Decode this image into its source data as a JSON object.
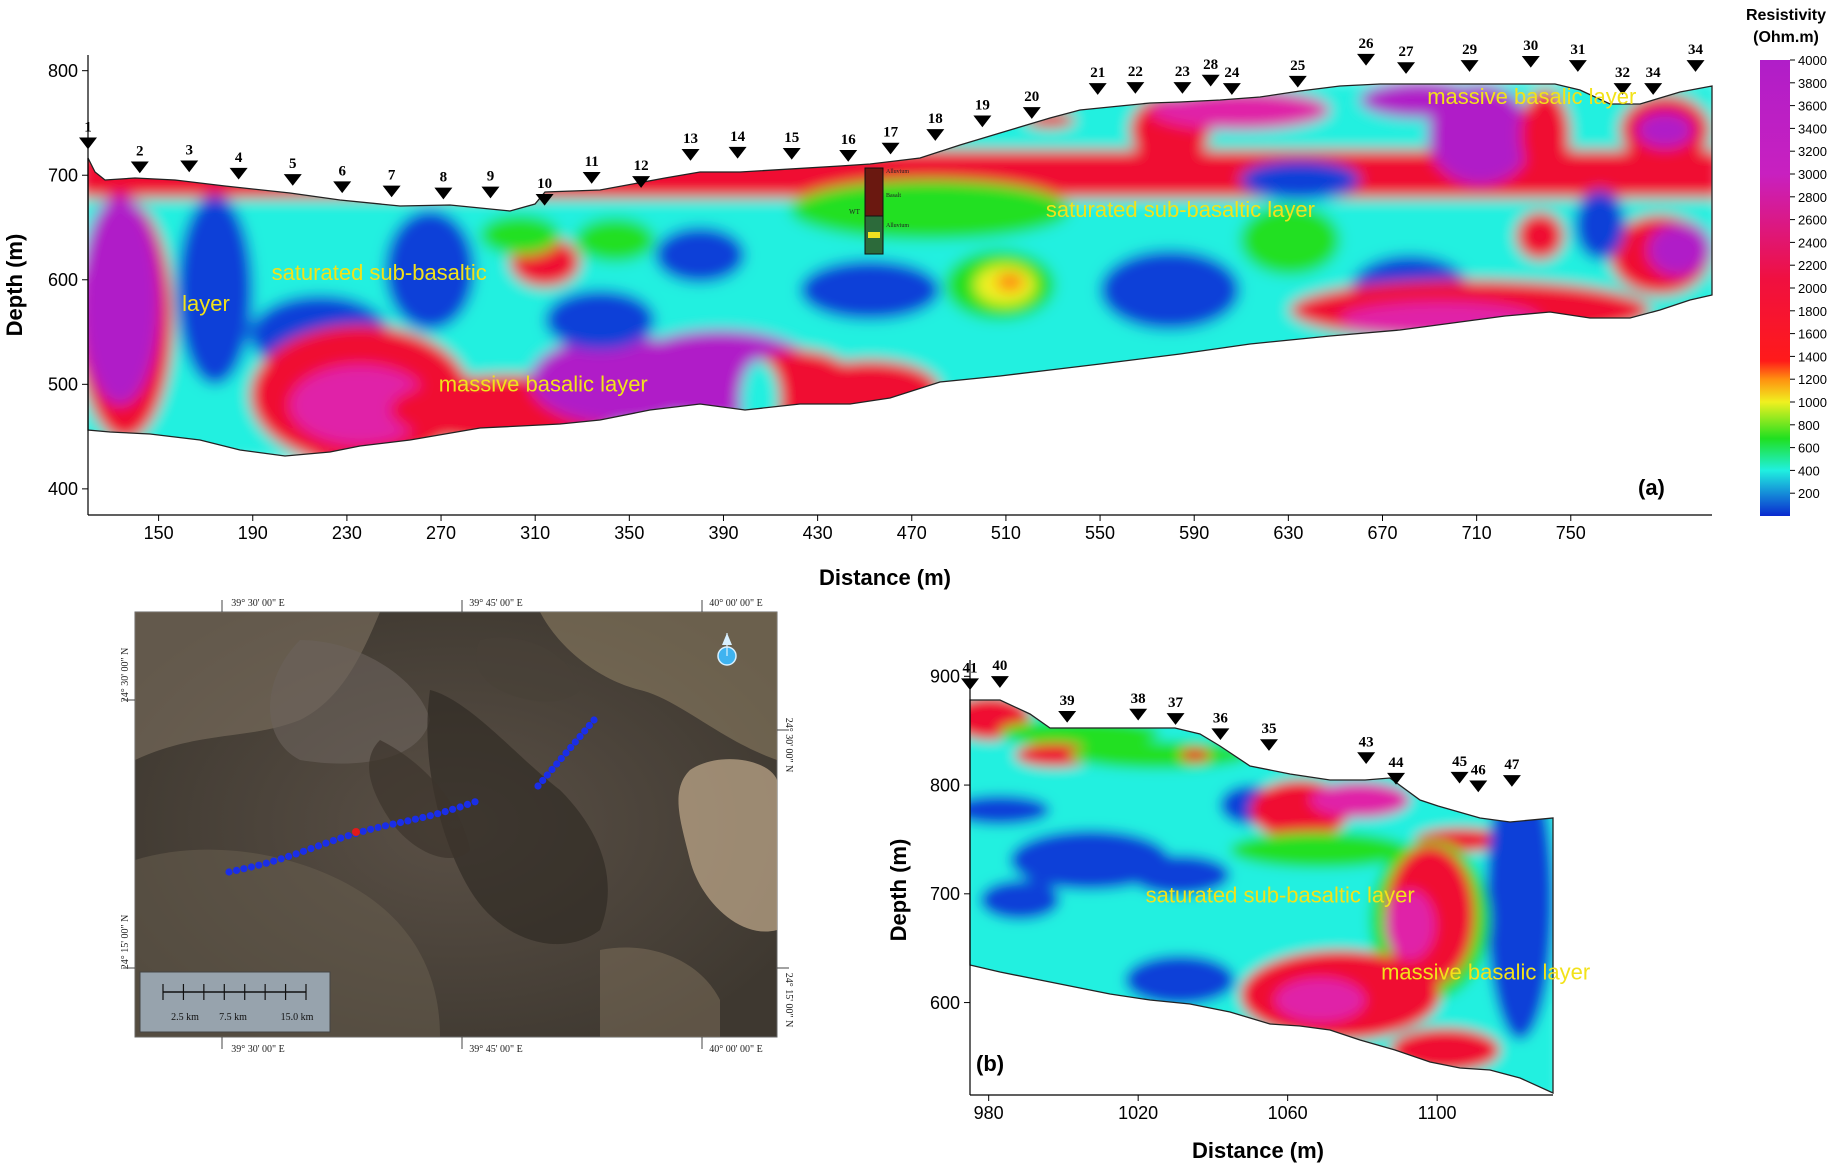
{
  "colors": {
    "violet": "#b01ec8",
    "magenta": "#e020a8",
    "red": "#f01030",
    "orange": "#ff8010",
    "yellow": "#f0f020",
    "green": "#20e020",
    "cyan": "#20f0e0",
    "blue": "#1040d8",
    "label_yellow": "#f2e21a",
    "map_dot": "#1a2ee8"
  },
  "chart_data": [
    {
      "id": "a",
      "type": "heatmap",
      "panel_label": "(a)",
      "xlabel": "Distance (m)",
      "ylabel": "Depth (m)",
      "xlim": [
        120,
        810
      ],
      "ylim": [
        375,
        815
      ],
      "xticks": [
        "150",
        "190",
        "230",
        "270",
        "310",
        "350",
        "390",
        "430",
        "470",
        "510",
        "550",
        "590",
        "630",
        "670",
        "710",
        "750"
      ],
      "yticks": [
        "800",
        "700",
        "600",
        "500",
        "400"
      ],
      "stations": [
        {
          "label": "1",
          "x": 120,
          "y": 738
        },
        {
          "label": "2",
          "x": 142,
          "y": 715
        },
        {
          "label": "3",
          "x": 163,
          "y": 716
        },
        {
          "label": "4",
          "x": 184,
          "y": 709
        },
        {
          "label": "5",
          "x": 207,
          "y": 703
        },
        {
          "label": "6",
          "x": 228,
          "y": 696
        },
        {
          "label": "7",
          "x": 249,
          "y": 692
        },
        {
          "label": "8",
          "x": 271,
          "y": 690
        },
        {
          "label": "9",
          "x": 291,
          "y": 691
        },
        {
          "label": "10",
          "x": 314,
          "y": 684
        },
        {
          "label": "11",
          "x": 334,
          "y": 705
        },
        {
          "label": "12",
          "x": 355,
          "y": 701
        },
        {
          "label": "13",
          "x": 376,
          "y": 727
        },
        {
          "label": "14",
          "x": 396,
          "y": 729
        },
        {
          "label": "15",
          "x": 419,
          "y": 728
        },
        {
          "label": "16",
          "x": 443,
          "y": 726
        },
        {
          "label": "17",
          "x": 461,
          "y": 733
        },
        {
          "label": "18",
          "x": 480,
          "y": 746
        },
        {
          "label": "19",
          "x": 500,
          "y": 759
        },
        {
          "label": "20",
          "x": 521,
          "y": 767
        },
        {
          "label": "21",
          "x": 549,
          "y": 790
        },
        {
          "label": "22",
          "x": 565,
          "y": 791
        },
        {
          "label": "23",
          "x": 585,
          "y": 791
        },
        {
          "label": "28",
          "x": 597,
          "y": 798
        },
        {
          "label": "24",
          "x": 606,
          "y": 790
        },
        {
          "label": "25",
          "x": 634,
          "y": 797
        },
        {
          "label": "26",
          "x": 663,
          "y": 818
        },
        {
          "label": "27",
          "x": 680,
          "y": 810
        },
        {
          "label": "29",
          "x": 707,
          "y": 812
        },
        {
          "label": "30",
          "x": 733,
          "y": 816
        },
        {
          "label": "31",
          "x": 753,
          "y": 812
        },
        {
          "label": "32",
          "x": 772,
          "y": 790
        },
        {
          "label": "34",
          "x": 785,
          "y": 790
        },
        {
          "label": "34",
          "x": 803,
          "y": 812
        }
      ],
      "annotations": [
        {
          "text": "saturated sub-basaltic",
          "x": 198,
          "y": 600
        },
        {
          "text": "layer",
          "x": 160,
          "y": 570
        },
        {
          "text": "massive basalic layer",
          "x": 269,
          "y": 493
        },
        {
          "text": "saturated sub-basaltic layer",
          "x": 527,
          "y": 660
        },
        {
          "text": "massive basalic layer",
          "x": 689,
          "y": 768
        }
      ],
      "borehole_labels": [
        "Alluvium",
        "Basalt",
        "Alluvium",
        "WT"
      ]
    },
    {
      "id": "b",
      "type": "heatmap",
      "panel_label": "(b)",
      "xlabel": "Distance (m)",
      "ylabel": "Depth (m)",
      "xlim": [
        975,
        1131
      ],
      "ylim": [
        515,
        915
      ],
      "xticks": [
        "980",
        "1020",
        "1060",
        "1100"
      ],
      "yticks": [
        "900",
        "800",
        "700",
        "600"
      ],
      "stations": [
        {
          "label": "41",
          "x": 975,
          "y": 900
        },
        {
          "label": "40",
          "x": 983,
          "y": 902
        },
        {
          "label": "39",
          "x": 1001,
          "y": 870
        },
        {
          "label": "38",
          "x": 1020,
          "y": 872
        },
        {
          "label": "37",
          "x": 1030,
          "y": 868
        },
        {
          "label": "36",
          "x": 1042,
          "y": 854
        },
        {
          "label": "35",
          "x": 1055,
          "y": 844
        },
        {
          "label": "43",
          "x": 1081,
          "y": 832
        },
        {
          "label": "44",
          "x": 1089,
          "y": 813
        },
        {
          "label": "45",
          "x": 1106,
          "y": 814
        },
        {
          "label": "46",
          "x": 1111,
          "y": 806
        },
        {
          "label": "47",
          "x": 1120,
          "y": 811
        }
      ],
      "annotations": [
        {
          "text": "saturated sub-basaltic layer",
          "x": 1022,
          "y": 692
        },
        {
          "text": "massive basalic layer",
          "x": 1085,
          "y": 621
        }
      ]
    }
  ],
  "colorbar": {
    "title": [
      "Resistivity",
      "(Ohm.m)"
    ],
    "ticks": [
      "4000",
      "3800",
      "3600",
      "3400",
      "3200",
      "3000",
      "2800",
      "2600",
      "2400",
      "2200",
      "2000",
      "1800",
      "1600",
      "1400",
      "1200",
      "1000",
      "800",
      "600",
      "400",
      "200"
    ]
  },
  "map": {
    "lon_labels": [
      "39° 30' 00\" E",
      "39° 45' 00\" E",
      "40° 00' 00\" E"
    ],
    "lat_labels_left": [
      "24° 30' 00\" N",
      "24° 15' 00\" N"
    ],
    "lat_labels_right": [
      "24° 30' 00\" N",
      "24° 15' 00\" N"
    ],
    "scale_labels": [
      "2.5 km",
      "7.5 km",
      "15.0 km"
    ]
  }
}
